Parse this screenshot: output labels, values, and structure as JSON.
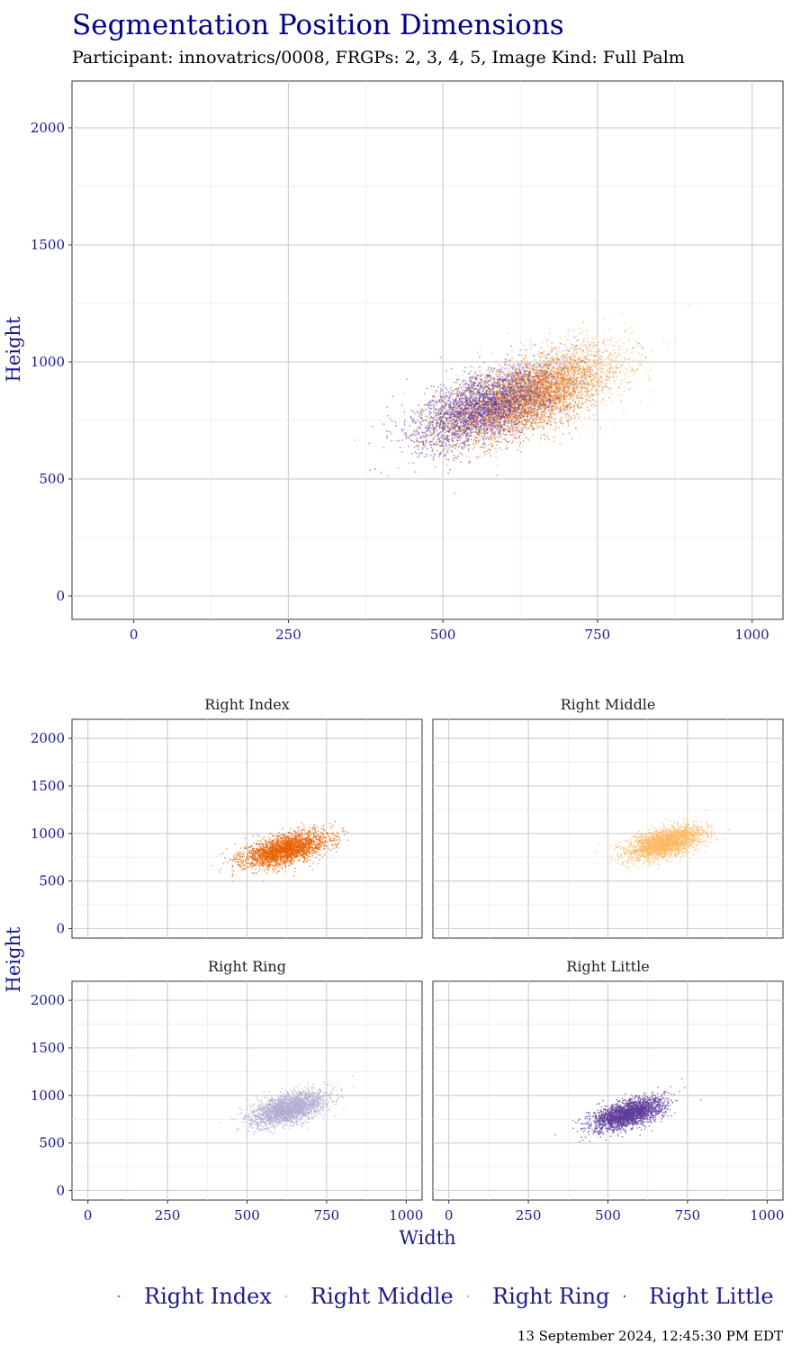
{
  "title": "Segmentation Position Dimensions",
  "subtitle": "Participant: innovatrics/0008, FRGPs: 2, 3, 4, 5, Image Kind: Full Palm",
  "timestamp": "13 September 2024, 12:45:30 PM EDT",
  "colors": {
    "right_index": "#e66101",
    "right_middle": "#fdb863",
    "right_ring": "#b2abd2",
    "right_little": "#5e3c99"
  },
  "chart_data": [
    {
      "type": "scatter",
      "panel": "combined",
      "xlabel": "",
      "ylabel": "Height",
      "xlim": [
        -100,
        1050
      ],
      "ylim": [
        -100,
        2200
      ],
      "xticks": [
        0,
        250,
        500,
        750,
        1000
      ],
      "yticks": [
        0,
        500,
        1000,
        1500,
        2000
      ],
      "grid": true,
      "series": [
        {
          "name": "Right Index",
          "color": "#e66101",
          "center": [
            620,
            830
          ],
          "spread": [
            65,
            90
          ],
          "n": 2200
        },
        {
          "name": "Right Middle",
          "color": "#fdb863",
          "center": [
            680,
            900
          ],
          "spread": [
            60,
            90
          ],
          "n": 2200
        },
        {
          "name": "Right Ring",
          "color": "#b2abd2",
          "center": [
            630,
            860
          ],
          "spread": [
            60,
            90
          ],
          "n": 2200
        },
        {
          "name": "Right Little",
          "color": "#5e3c99",
          "center": [
            560,
            800
          ],
          "spread": [
            55,
            85
          ],
          "n": 2200
        }
      ]
    },
    {
      "type": "scatter",
      "panel": "facet",
      "strip_label": "Right Index",
      "color": "#e66101",
      "center": [
        620,
        830
      ],
      "spread": [
        65,
        90
      ],
      "n": 2500,
      "xlim": [
        -50,
        1050
      ],
      "ylim": [
        -100,
        2200
      ]
    },
    {
      "type": "scatter",
      "panel": "facet",
      "strip_label": "Right Middle",
      "color": "#fdb863",
      "center": [
        680,
        900
      ],
      "spread": [
        60,
        90
      ],
      "n": 2500,
      "xlim": [
        -50,
        1050
      ],
      "ylim": [
        -100,
        2200
      ]
    },
    {
      "type": "scatter",
      "panel": "facet",
      "strip_label": "Right Ring",
      "color": "#b2abd2",
      "center": [
        630,
        860
      ],
      "spread": [
        60,
        90
      ],
      "n": 2500,
      "xlim": [
        -50,
        1050
      ],
      "ylim": [
        -100,
        2200
      ]
    },
    {
      "type": "scatter",
      "panel": "facet",
      "strip_label": "Right Little",
      "color": "#5e3c99",
      "center": [
        560,
        800
      ],
      "spread": [
        55,
        85
      ],
      "n": 2500,
      "xlim": [
        -50,
        1050
      ],
      "ylim": [
        -100,
        2200
      ]
    }
  ],
  "facet_axes": {
    "xlabel": "Width",
    "ylabel": "Height",
    "xticks": [
      0,
      250,
      500,
      750,
      1000
    ],
    "yticks": [
      0,
      500,
      1000,
      1500,
      2000
    ]
  },
  "legend": {
    "position": "bottom",
    "items": [
      "Right Index",
      "Right Middle",
      "Right Ring",
      "Right Little"
    ]
  }
}
